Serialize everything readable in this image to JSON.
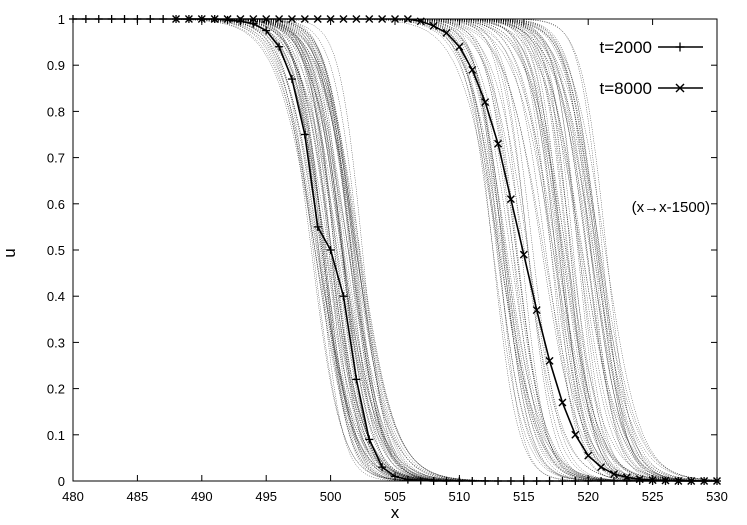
{
  "chart_data": {
    "type": "line",
    "title": "",
    "xlabel": "x",
    "ylabel": "u",
    "xlim": [
      480,
      530
    ],
    "ylim": [
      0,
      1
    ],
    "x_ticks": [
      480,
      485,
      490,
      495,
      500,
      505,
      510,
      515,
      520,
      525,
      530
    ],
    "y_ticks": [
      0,
      0.1,
      0.2,
      0.3,
      0.4,
      0.5,
      0.6,
      0.7,
      0.8,
      0.9,
      1
    ],
    "grid": false,
    "legend_position": "top-right",
    "annotation": "(x→x-1500)",
    "series": [
      {
        "name": "t=2000",
        "marker": "plus",
        "x": [
          480,
          481,
          482,
          483,
          484,
          485,
          486,
          487,
          488,
          489,
          490,
          491,
          492,
          493,
          494,
          495,
          496,
          497,
          498,
          499,
          500,
          501,
          502,
          503,
          504,
          505,
          506,
          507,
          508,
          509,
          510,
          511,
          512,
          513,
          514,
          515,
          516,
          517,
          518,
          519,
          520,
          521,
          522,
          523,
          524,
          525,
          526,
          527,
          528,
          529,
          530
        ],
        "y": [
          1,
          1,
          1,
          1,
          1,
          1,
          1,
          1,
          1,
          1,
          1,
          1,
          0.998,
          0.995,
          0.99,
          0.975,
          0.94,
          0.87,
          0.75,
          0.55,
          0.5,
          0.4,
          0.22,
          0.09,
          0.03,
          0.01,
          0.003,
          0.001,
          0,
          0,
          0,
          0,
          0,
          0,
          0,
          0,
          0,
          0,
          0,
          0,
          0,
          0,
          0,
          0,
          0,
          0,
          0,
          0,
          0,
          0,
          0
        ]
      },
      {
        "name": "t=8000",
        "marker": "cross",
        "x": [
          488,
          489,
          490,
          491,
          492,
          493,
          494,
          495,
          496,
          497,
          498,
          499,
          500,
          501,
          502,
          503,
          504,
          505,
          506,
          507,
          508,
          509,
          510,
          511,
          512,
          513,
          514,
          515,
          516,
          517,
          518,
          519,
          520,
          521,
          522,
          523,
          524,
          525,
          526,
          527,
          528,
          529,
          530
        ],
        "y": [
          1,
          1,
          1,
          1,
          1,
          1,
          1,
          1,
          1,
          1,
          1,
          1,
          1,
          1,
          1,
          1,
          1,
          1,
          1,
          0.995,
          0.985,
          0.97,
          0.94,
          0.89,
          0.82,
          0.73,
          0.61,
          0.49,
          0.37,
          0.26,
          0.17,
          0.1,
          0.055,
          0.03,
          0.015,
          0.008,
          0.004,
          0.002,
          0.001,
          0,
          0,
          0,
          0
        ]
      }
    ],
    "ensemble": {
      "line_style": "dotted",
      "groups": [
        {
          "center_min": 498.5,
          "center_max": 502.5,
          "count": 70
        },
        {
          "center_min": 512.5,
          "center_max": 521.5,
          "count": 80
        }
      ]
    }
  }
}
